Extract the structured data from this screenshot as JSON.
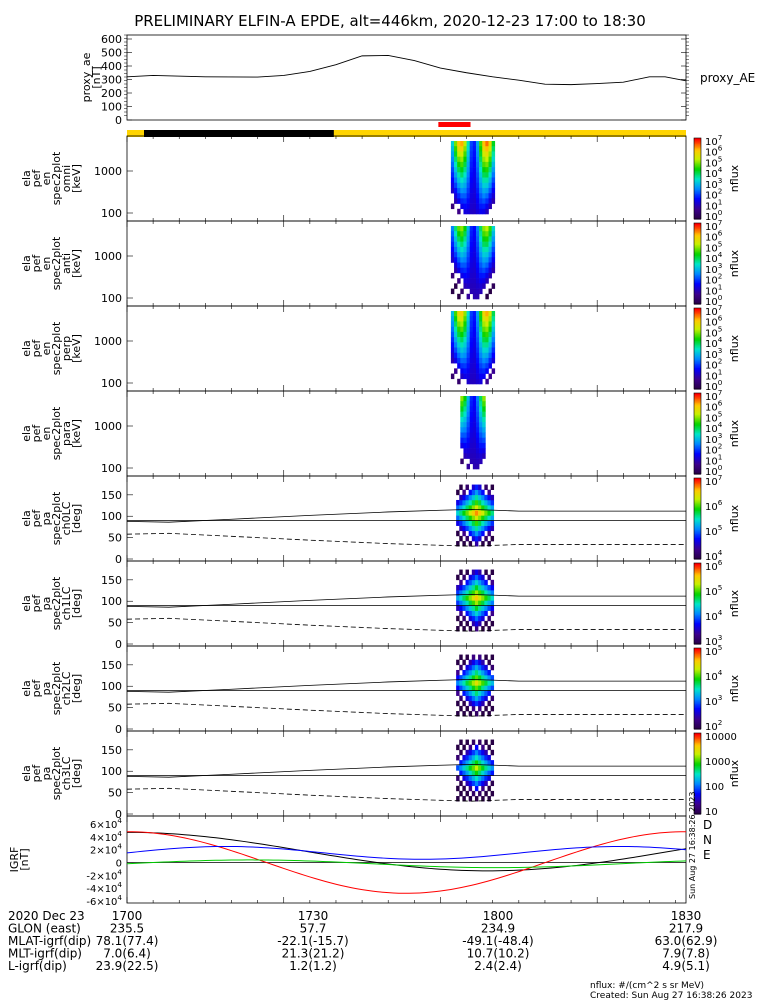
{
  "title": "PRELIMINARY ELFIN-A EPDE, alt=446km, 2020-12-23 17:00 to 18:30",
  "proxy_ae": {
    "ylabel": [
      "proxy_ae",
      "[nT]"
    ],
    "ticks": [
      "0",
      "100",
      "200",
      "300",
      "400",
      "500",
      "600"
    ],
    "legend": "proxy_AE",
    "series": [
      [
        0,
        320
      ],
      [
        5,
        330
      ],
      [
        15,
        320
      ],
      [
        25,
        318
      ],
      [
        30,
        330
      ],
      [
        35,
        360
      ],
      [
        40,
        410
      ],
      [
        45,
        475
      ],
      [
        50,
        478
      ],
      [
        55,
        440
      ],
      [
        60,
        385
      ],
      [
        65,
        350
      ],
      [
        70,
        320
      ],
      [
        75,
        295
      ],
      [
        80,
        265
      ],
      [
        85,
        262
      ],
      [
        90,
        270
      ],
      [
        95,
        280
      ],
      [
        100,
        320
      ],
      [
        103,
        320
      ],
      [
        107,
        290
      ]
    ]
  },
  "status_bar": {
    "black_until_frac": 0.37,
    "red_ticks": [
      0.557,
      0.566,
      0.575,
      0.584,
      0.593,
      0.602
    ]
  },
  "spectra": [
    {
      "ylabel": [
        "ela",
        "pef",
        "en",
        "spec2plot",
        "omni",
        "[keV]"
      ],
      "ticks": [
        "100",
        "1000"
      ],
      "cbar_ticks": [
        "10^0",
        "10^1",
        "10^2",
        "10^3",
        "10^4",
        "10^5",
        "10^6",
        "10^7"
      ],
      "cbar_label": "nflux"
    },
    {
      "ylabel": [
        "ela",
        "pef",
        "en",
        "spec2plot",
        "anti",
        "[keV]"
      ],
      "ticks": [
        "100",
        "1000"
      ],
      "cbar_ticks": [
        "10^0",
        "10^1",
        "10^2",
        "10^3",
        "10^4",
        "10^5",
        "10^6",
        "10^7"
      ],
      "cbar_label": "nflux"
    },
    {
      "ylabel": [
        "ela",
        "pef",
        "en",
        "spec2plot",
        "perp",
        "[keV]"
      ],
      "ticks": [
        "100",
        "1000"
      ],
      "cbar_ticks": [
        "10^0",
        "10^1",
        "10^2",
        "10^3",
        "10^4",
        "10^5",
        "10^6",
        "10^7"
      ],
      "cbar_label": "nflux"
    },
    {
      "ylabel": [
        "ela",
        "pef",
        "en",
        "spec2plot",
        "para",
        "[keV]"
      ],
      "ticks": [
        "100",
        "1000"
      ],
      "cbar_ticks": [
        "10^0",
        "10^1",
        "10^2",
        "10^3",
        "10^4",
        "10^5",
        "10^6",
        "10^7"
      ],
      "cbar_label": "nflux"
    }
  ],
  "pitch": [
    {
      "ylabel": [
        "ela",
        "pef",
        "pa",
        "spec2plot",
        "ch0LC",
        "[deg]"
      ],
      "ticks": [
        "0",
        "50",
        "100",
        "150"
      ],
      "cbar_ticks": [
        "10^4",
        "10^5",
        "10^6",
        "10^7"
      ],
      "cbar_label": "nflux"
    },
    {
      "ylabel": [
        "ela",
        "pef",
        "pa",
        "spec2plot",
        "ch1LC",
        "[deg]"
      ],
      "ticks": [
        "0",
        "50",
        "100",
        "150"
      ],
      "cbar_ticks": [
        "10^3",
        "10^4",
        "10^5",
        "10^6"
      ],
      "cbar_label": "nflux"
    },
    {
      "ylabel": [
        "ela",
        "pef",
        "pa",
        "spec2plot",
        "ch2LC",
        "[deg]"
      ],
      "ticks": [
        "0",
        "50",
        "100",
        "150"
      ],
      "cbar_ticks": [
        "10^2",
        "10^3",
        "10^4",
        "10^5"
      ],
      "cbar_label": "nflux"
    },
    {
      "ylabel": [
        "ela",
        "pef",
        "pa",
        "spec2plot",
        "ch3LC",
        "[deg]"
      ],
      "ticks": [
        "0",
        "50",
        "100",
        "150"
      ],
      "cbar_ticks": [
        "10",
        "100",
        "1000",
        "10000"
      ],
      "cbar_label": "nflux"
    }
  ],
  "igrf": {
    "ylabel": [
      "IGRF",
      "[nT]"
    ],
    "ticks": [
      "-6×10^4",
      "-4×10^4",
      "-2×10^4",
      "0",
      "2×10^4",
      "4×10^4",
      "6×10^4"
    ],
    "legend": [
      {
        "name": "D",
        "color": "#ff0000"
      },
      {
        "name": "N",
        "color": "#0000ff"
      },
      {
        "name": "E",
        "color": "#00cc00"
      }
    ],
    "stamp": "Sun Aug 27 16:38:26 2023"
  },
  "x_axis": {
    "tick_labels": [
      "1700",
      "1730",
      "1800",
      "1830"
    ],
    "range_min": [
      0,
      107
    ]
  },
  "orbit_table": {
    "rows": [
      {
        "label": "2020 Dec 23",
        "values": [
          "1700",
          "1730",
          "1800",
          "1830"
        ]
      },
      {
        "label": "GLON (east)",
        "values": [
          "235.5",
          "57.7",
          "234.9",
          "217.9"
        ]
      },
      {
        "label": "MLAT-igrf(dip)",
        "values": [
          "78.1(77.4)",
          "-22.1(-15.7)",
          "-49.1(-48.4)",
          "63.0(62.9)"
        ]
      },
      {
        "label": "MLT-igrf(dip)",
        "values": [
          "7.0(6.4)",
          "21.3(21.2)",
          "10.7(10.2)",
          "7.9(7.8)"
        ]
      },
      {
        "label": "L-igrf(dip)",
        "values": [
          "23.9(22.5)",
          "1.2(1.2)",
          "2.4(2.4)",
          "4.9(5.1)"
        ]
      }
    ]
  },
  "footer": {
    "units": "nflux: #/(cm^2 s sr MeV)",
    "created": "Created: Sun Aug 27 16:38:26 2023"
  },
  "colors": {
    "red": "#ff0000",
    "yellow": "#ffd400",
    "blue": "#0000ff",
    "green": "#00cc00"
  }
}
